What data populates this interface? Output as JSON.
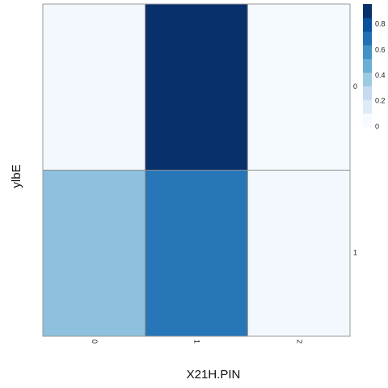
{
  "chart_data": {
    "type": "heatmap",
    "xlabel": "X21H.PIN",
    "ylabel": "ylbE",
    "x_categories": [
      "0",
      "1",
      "2"
    ],
    "y_categories": [
      "0",
      "1"
    ],
    "values": [
      [
        0.02,
        0.96,
        0.01
      ],
      [
        0.4,
        0.7,
        0.02
      ]
    ],
    "colorbar": {
      "ticks": [
        "0",
        "0.2",
        "0.4",
        "0.6",
        "0.8"
      ],
      "range": [
        0,
        0.96
      ],
      "colors": [
        "#f7fbff",
        "#deebf7",
        "#c6dbef",
        "#9ecae1",
        "#6baed6",
        "#4292c6",
        "#2171b5",
        "#08519c",
        "#08306b"
      ]
    }
  }
}
